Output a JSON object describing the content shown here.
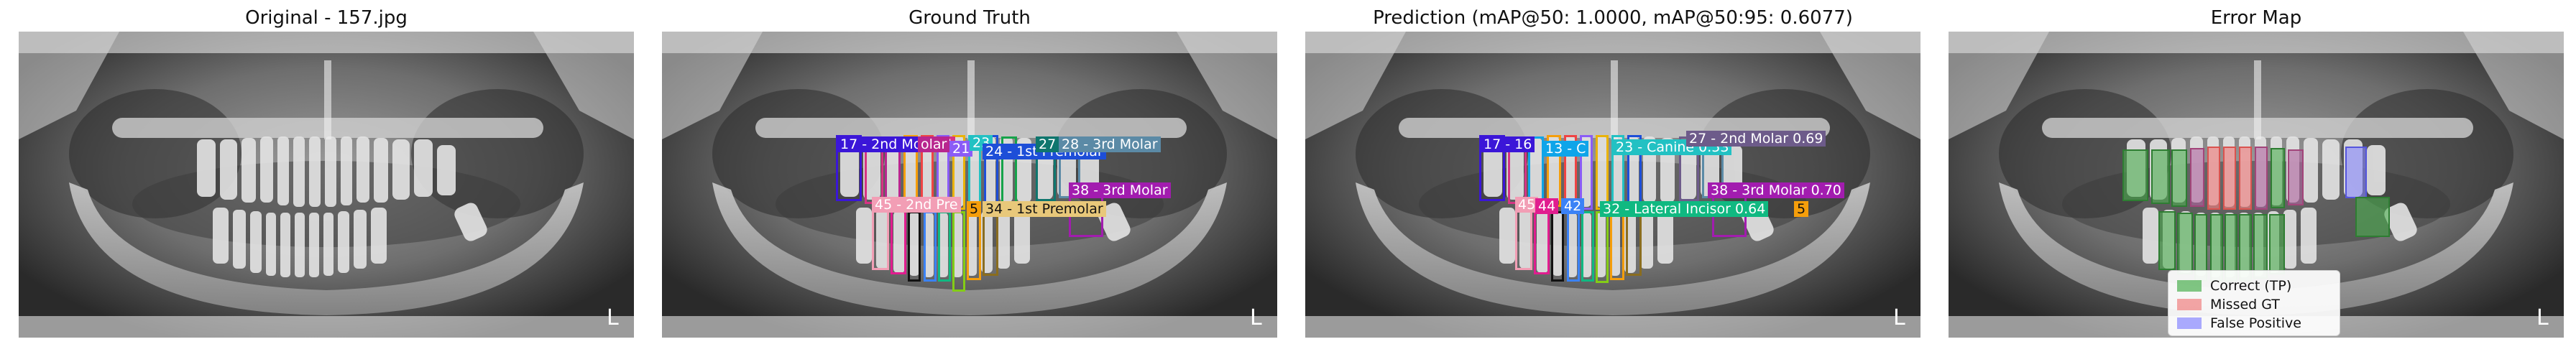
{
  "panels": [
    {
      "title": "Original - 157.jpg"
    },
    {
      "title": "Ground Truth"
    },
    {
      "title": "Prediction (mAP@50: 1.0000, mAP@50:95: 0.6077)"
    },
    {
      "title": "Error Map"
    }
  ],
  "ground_truth_labels": [
    {
      "text": "17 - 2nd Molar",
      "color": "#3b16d8"
    },
    {
      "text": "14",
      "color": "#d63384"
    },
    {
      "text": "olar",
      "color": "#b8268e"
    },
    {
      "text": "21",
      "color": "#8b5cf6"
    },
    {
      "text": "23",
      "color": "#22c1c3"
    },
    {
      "text": "24 - 1st Premolar",
      "color": "#1d4ed8"
    },
    {
      "text": "27",
      "color": "#0f766e"
    },
    {
      "text": "28 - 3rd Molar",
      "color": "#5b8aa6"
    },
    {
      "text": "38 - 3rd Molar",
      "color": "#a21caf"
    },
    {
      "text": "45 - 2nd Pre",
      "color": "#f29eb5"
    },
    {
      "text": "5",
      "color": "#f59e0b"
    },
    {
      "text": "34 - 1st Premolar",
      "color": "#8a6d1f"
    }
  ],
  "prediction_labels": [
    {
      "text": "17 - 16",
      "color": "#3b16d8"
    },
    {
      "text": "13 - C",
      "color": "#0ea5e9"
    },
    {
      "text": "23 - Canine 0.53",
      "color": "#22c1c3"
    },
    {
      "text": "27 - 2nd Molar 0.69",
      "color": "#6d5b8a"
    },
    {
      "text": "38 - 3rd Molar 0.70",
      "color": "#a21caf"
    },
    {
      "text": "45",
      "color": "#f29eb5"
    },
    {
      "text": "44",
      "color": "#e11d8f"
    },
    {
      "text": "42",
      "color": "#3b82f6"
    },
    {
      "text": "32 - Lateral Incisor 0.64",
      "color": "#10b981"
    },
    {
      "text": "5",
      "color": "#f59e0b"
    }
  ],
  "legend": [
    {
      "text": "Correct (TP)",
      "color": "#4caf50"
    },
    {
      "text": "Missed GT",
      "color": "#f08080"
    },
    {
      "text": "False Positive",
      "color": "#8888ff"
    }
  ]
}
